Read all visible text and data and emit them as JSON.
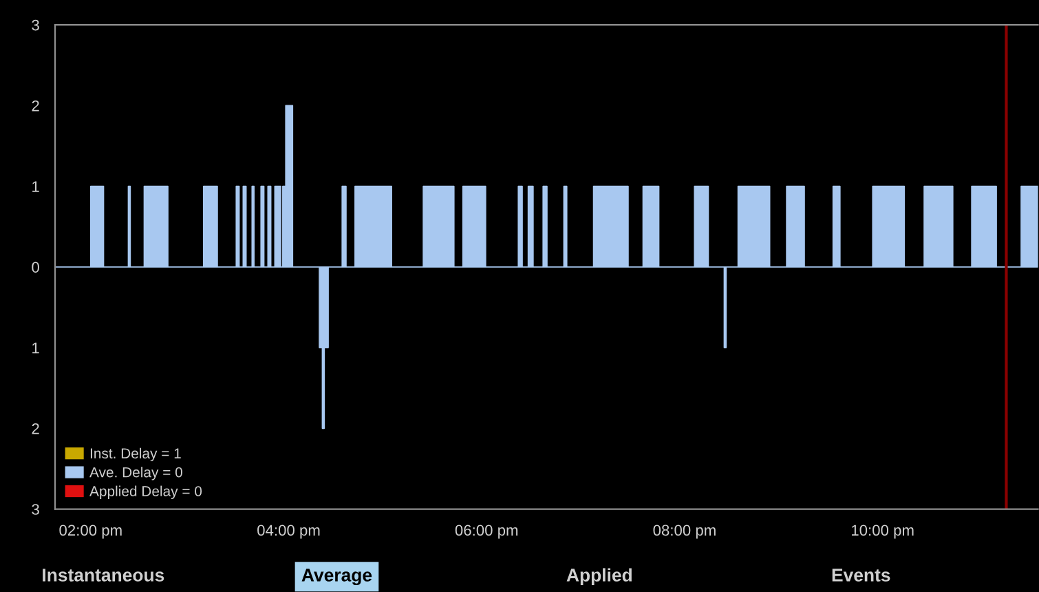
{
  "chart_data": {
    "type": "area",
    "xlim": [
      13.64,
      23.57
    ],
    "xticks": [
      {
        "value": 14,
        "label": "02:00 pm"
      },
      {
        "value": 16,
        "label": "04:00 pm"
      },
      {
        "value": 18,
        "label": "06:00 pm"
      },
      {
        "value": 20,
        "label": "08:00 pm"
      },
      {
        "value": 22,
        "label": "10:00 pm"
      }
    ],
    "ylim": [
      -3,
      3
    ],
    "yticks": [
      {
        "value": -3,
        "label": "3"
      },
      {
        "value": -2,
        "label": "2"
      },
      {
        "value": -1,
        "label": "1"
      },
      0,
      1,
      2,
      3
    ],
    "grid": false,
    "legend": "bottom left",
    "series": [
      {
        "name": "Inst. Delay = 1",
        "color": "#c8a800"
      },
      {
        "name": "Ave. Delay = 0",
        "color": "#a8c8f0",
        "x": [
          13.64,
          14.0,
          14.0,
          14.13,
          14.13,
          14.38,
          14.38,
          14.4,
          14.4,
          14.54,
          14.54,
          14.78,
          14.78,
          15.14,
          15.14,
          15.28,
          15.28,
          15.47,
          15.47,
          15.5,
          15.5,
          15.54,
          15.54,
          15.57,
          15.57,
          15.63,
          15.63,
          15.65,
          15.65,
          15.72,
          15.72,
          15.75,
          15.75,
          15.79,
          15.79,
          15.82,
          15.82,
          15.86,
          15.86,
          15.92,
          15.92,
          15.94,
          15.94,
          15.97,
          15.97,
          16.04,
          16.04,
          16.31,
          16.31,
          16.34,
          16.34,
          16.36,
          16.36,
          16.4,
          16.4,
          16.54,
          16.54,
          16.58,
          16.58,
          16.67,
          16.67,
          17.04,
          17.04,
          17.36,
          17.36,
          17.67,
          17.67,
          17.76,
          17.76,
          17.99,
          17.99,
          18.32,
          18.32,
          18.36,
          18.36,
          18.42,
          18.42,
          18.47,
          18.47,
          18.57,
          18.57,
          18.61,
          18.61,
          18.78,
          18.78,
          18.81,
          18.81,
          19.08,
          19.08,
          19.43,
          19.43,
          19.58,
          19.58,
          19.74,
          19.74,
          20.1,
          20.1,
          20.24,
          20.24,
          20.4,
          20.4,
          20.42,
          20.42,
          20.54,
          20.54,
          20.86,
          20.86,
          21.03,
          21.03,
          21.21,
          21.21,
          21.5,
          21.5,
          21.57,
          21.57,
          21.9,
          21.9,
          22.22,
          22.22,
          22.42,
          22.42,
          22.71,
          22.71,
          22.9,
          22.9,
          23.15,
          23.15,
          23.4,
          23.4,
          23.57
        ],
        "values": [
          0,
          0,
          1,
          1,
          0,
          0,
          1,
          1,
          0,
          0,
          1,
          1,
          0,
          0,
          1,
          1,
          0,
          0,
          1,
          1,
          0,
          0,
          1,
          1,
          0,
          0,
          1,
          1,
          0,
          0,
          1,
          1,
          0,
          0,
          1,
          1,
          0,
          0,
          1,
          1,
          0,
          0,
          1,
          1,
          2,
          2,
          0,
          0,
          -1,
          -1,
          -2,
          -2,
          -1,
          -1,
          0,
          0,
          1,
          1,
          0,
          0,
          1,
          1,
          0,
          0,
          1,
          1,
          0,
          0,
          1,
          1,
          0,
          0,
          1,
          1,
          0,
          0,
          1,
          1,
          0,
          0,
          1,
          1,
          0,
          0,
          1,
          1,
          0,
          0,
          1,
          1,
          0,
          0,
          1,
          1,
          0,
          0,
          1,
          1,
          0,
          0,
          -1,
          -1,
          0,
          0,
          1,
          1,
          0,
          0,
          1,
          1,
          0,
          0,
          1,
          1,
          0,
          0,
          1,
          1,
          0,
          0,
          1,
          1,
          0,
          0,
          1,
          1,
          0,
          0,
          1,
          1
        ]
      },
      {
        "name": "Applied Delay = 0",
        "color": "#e01010"
      }
    ],
    "ref_lines": [
      {
        "axis": "x",
        "value": 23.25,
        "label": null,
        "color": "#8b0000"
      }
    ],
    "annotations": [
      "Instantaneous",
      "Average",
      "Applied",
      "Events"
    ]
  }
}
